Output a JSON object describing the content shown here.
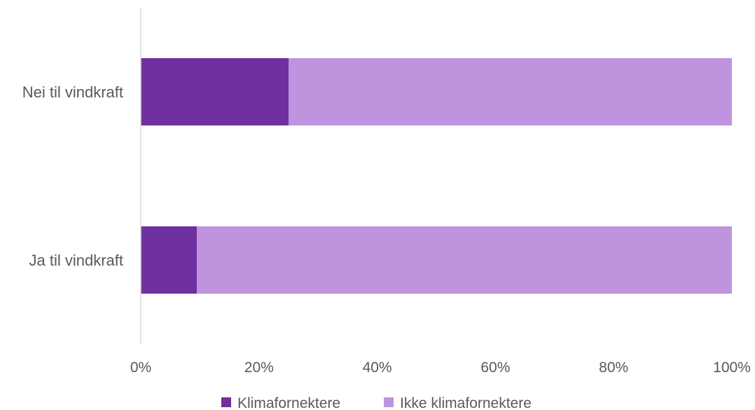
{
  "chart_data": {
    "type": "bar",
    "orientation": "horizontal",
    "stacked": "percent",
    "categories": [
      "Nei til vindkraft",
      "Ja til vindkraft"
    ],
    "series": [
      {
        "name": "Klimafornektere",
        "values": [
          25,
          9.5
        ],
        "color": "#7030a0"
      },
      {
        "name": "Ikke klimafornektere",
        "values": [
          75,
          90.5
        ],
        "color": "#bf94de"
      }
    ],
    "x_ticks": [
      "0%",
      "20%",
      "40%",
      "60%",
      "80%",
      "100%"
    ],
    "xlim": [
      0,
      100
    ],
    "grid": false,
    "legend_position": "bottom",
    "title": "",
    "xlabel": "",
    "ylabel": ""
  }
}
